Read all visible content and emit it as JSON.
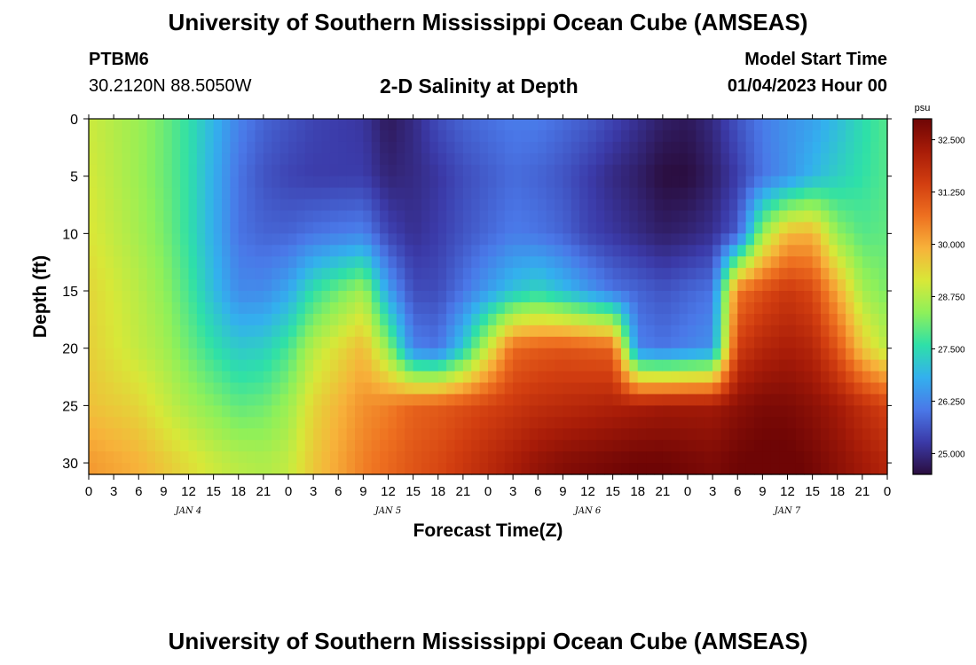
{
  "header": {
    "title": "University of Southern Mississippi Ocean Cube (AMSEAS)",
    "station_id": "PTBM6",
    "coordinates": "30.2120N  88.5050W",
    "model_start_label": "Model Start Time",
    "model_start_value": "01/04/2023 Hour 00"
  },
  "footer": {
    "title": "University of Southern Mississippi Ocean Cube (AMSEAS)"
  },
  "chart_data": {
    "type": "heatmap",
    "title": "2-D Salinity at Depth",
    "xlabel": "Forecast Time(Z)",
    "ylabel": "Depth (ft)",
    "x_unit": "hours since 01/04/2023 00Z",
    "xlim": [
      0,
      96
    ],
    "x_tick_labels": [
      "0",
      "3",
      "6",
      "9",
      "12",
      "15",
      "18",
      "21",
      "0",
      "3",
      "6",
      "9",
      "12",
      "15",
      "18",
      "21",
      "0",
      "3",
      "6",
      "9",
      "12",
      "15",
      "18",
      "21",
      "0",
      "3",
      "6",
      "9",
      "12",
      "15",
      "18",
      "21",
      "0"
    ],
    "day_labels": [
      {
        "hour": 12,
        "label": "JAN 4"
      },
      {
        "hour": 36,
        "label": "JAN 5"
      },
      {
        "hour": 60,
        "label": "JAN 6"
      },
      {
        "hour": 84,
        "label": "JAN 7"
      }
    ],
    "y_inverted": true,
    "ylim": [
      0,
      31
    ],
    "y_ticks": [
      0,
      5,
      10,
      15,
      20,
      25,
      30
    ],
    "grid": false,
    "colorbar": {
      "unit": "psu",
      "range": [
        24.5,
        33.0
      ],
      "ticks": [
        "32.500",
        "31.250",
        "30.000",
        "28.750",
        "27.500",
        "26.250",
        "25.000"
      ],
      "colors": [
        "#2a0d3e",
        "#3b3aa8",
        "#4a78e8",
        "#33b0ee",
        "#2ee0a8",
        "#8ef05a",
        "#d8e838",
        "#f7b23a",
        "#ee7020",
        "#d23e10",
        "#a81c08",
        "#6e0505"
      ]
    },
    "salinity_psu": {
      "hours": [
        0,
        6,
        9,
        12,
        15,
        18,
        21,
        24,
        27,
        33,
        36,
        39,
        42,
        45,
        51,
        54,
        57,
        60,
        63,
        66,
        69,
        72,
        75,
        78,
        81,
        84,
        87,
        90,
        93,
        96
      ],
      "depths_ft": [
        0,
        5,
        10,
        15,
        20,
        25,
        30
      ],
      "values": [
        [
          29.0,
          29.1,
          29.2,
          29.4,
          29.5,
          29.7,
          30.2
        ],
        [
          28.5,
          28.5,
          28.6,
          28.8,
          28.9,
          29.4,
          29.9
        ],
        [
          28.1,
          28.1,
          28.2,
          28.4,
          28.6,
          29.0,
          29.6
        ],
        [
          27.6,
          27.6,
          27.6,
          27.8,
          28.1,
          28.6,
          29.3
        ],
        [
          26.9,
          26.8,
          26.8,
          27.0,
          27.6,
          28.3,
          29.0
        ],
        [
          26.2,
          26.0,
          26.0,
          26.3,
          27.2,
          28.0,
          28.8
        ],
        [
          25.8,
          25.6,
          25.8,
          26.3,
          27.3,
          28.1,
          28.7
        ],
        [
          25.6,
          25.4,
          25.8,
          26.7,
          27.8,
          28.5,
          28.9
        ],
        [
          25.4,
          25.3,
          26.0,
          27.6,
          28.8,
          29.4,
          29.6
        ],
        [
          25.2,
          25.3,
          26.2,
          28.6,
          29.8,
          30.3,
          30.5
        ],
        [
          24.7,
          24.9,
          25.4,
          26.6,
          28.4,
          30.5,
          30.8
        ],
        [
          25.0,
          25.0,
          25.1,
          25.5,
          26.2,
          30.9,
          31.1
        ],
        [
          25.5,
          25.2,
          25.3,
          25.5,
          26.0,
          31.0,
          31.3
        ],
        [
          25.8,
          25.5,
          25.6,
          26.0,
          27.2,
          31.2,
          31.6
        ],
        [
          26.1,
          25.9,
          26.1,
          27.1,
          30.8,
          31.6,
          32.2
        ],
        [
          26.1,
          25.8,
          26.0,
          27.4,
          31.0,
          31.8,
          32.5
        ],
        [
          25.9,
          25.6,
          25.8,
          27.0,
          31.1,
          31.9,
          32.7
        ],
        [
          25.7,
          25.3,
          25.4,
          26.5,
          31.0,
          32.0,
          32.8
        ],
        [
          25.4,
          25.0,
          25.2,
          26.0,
          30.9,
          32.1,
          32.9
        ],
        [
          25.1,
          24.8,
          25.0,
          25.8,
          26.2,
          32.2,
          33.0
        ],
        [
          24.8,
          24.5,
          24.8,
          25.6,
          26.0,
          32.3,
          33.0
        ],
        [
          24.7,
          24.5,
          24.9,
          25.8,
          26.2,
          32.3,
          32.9
        ],
        [
          25.0,
          24.8,
          25.1,
          26.0,
          26.4,
          32.3,
          32.8
        ],
        [
          25.6,
          25.3,
          25.7,
          30.6,
          31.5,
          32.6,
          33.0
        ],
        [
          26.1,
          26.0,
          28.5,
          31.2,
          32.0,
          32.8,
          33.1
        ],
        [
          26.4,
          26.4,
          29.8,
          31.6,
          32.2,
          32.8,
          33.1
        ],
        [
          26.6,
          26.9,
          29.9,
          31.3,
          32.0,
          32.6,
          32.9
        ],
        [
          27.0,
          27.3,
          28.4,
          30.0,
          31.1,
          32.3,
          32.6
        ],
        [
          27.5,
          27.6,
          27.9,
          28.6,
          29.6,
          31.8,
          32.3
        ],
        [
          27.9,
          27.9,
          28.0,
          28.2,
          28.8,
          31.4,
          32.0
        ]
      ]
    }
  }
}
